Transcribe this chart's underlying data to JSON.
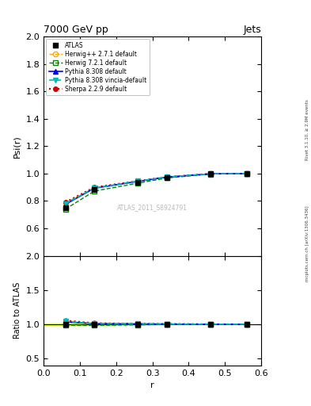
{
  "title_left": "7000 GeV pp",
  "title_right": "Jets",
  "right_label": "mcplots.cern.ch [arXiv:1306.3436]",
  "right_label2": "Rivet 3.1.10, ≥ 2.9M events",
  "watermark": "ATLAS_2011_S8924791",
  "xlabel": "r",
  "ylabel_main": "Psi(r)",
  "ylabel_ratio": "Ratio to ATLAS",
  "x_data": [
    0.06,
    0.14,
    0.26,
    0.34,
    0.46,
    0.56
  ],
  "atlas_y": [
    0.749,
    0.885,
    0.938,
    0.971,
    0.997,
    1.0
  ],
  "atlas_yerr": [
    0.01,
    0.008,
    0.006,
    0.005,
    0.003,
    0.002
  ],
  "herwig271_y": [
    0.786,
    0.895,
    0.943,
    0.974,
    0.998,
    1.0
  ],
  "herwig721_y": [
    0.74,
    0.872,
    0.93,
    0.968,
    0.996,
    1.0
  ],
  "pythia8308_y": [
    0.775,
    0.893,
    0.943,
    0.974,
    0.998,
    1.0
  ],
  "pythia8308v_y": [
    0.78,
    0.895,
    0.945,
    0.975,
    0.998,
    1.0
  ],
  "sherpa229_y": [
    0.79,
    0.9,
    0.946,
    0.975,
    0.999,
    1.0
  ],
  "ylim_main": [
    0.4,
    2.0
  ],
  "ylim_ratio": [
    0.4,
    2.0
  ],
  "xlim": [
    0.0,
    0.6
  ],
  "yticks_main": [
    0.6,
    0.8,
    1.0,
    1.2,
    1.4,
    1.6,
    1.8,
    2.0
  ],
  "yticks_ratio": [
    0.5,
    1.0,
    1.5,
    2.0
  ],
  "xticks_main": [
    0.1,
    0.2,
    0.3,
    0.4,
    0.5
  ],
  "xticks_ratio": [
    0.0,
    0.1,
    0.2,
    0.3,
    0.4,
    0.5,
    0.6
  ],
  "atlas_color": "#000000",
  "herwig271_color": "#FFA500",
  "herwig721_color": "#008800",
  "pythia8308_color": "#0000FF",
  "pythia8308v_color": "#00BBBB",
  "sherpa229_color": "#CC0000",
  "bg_color": "#ffffff",
  "legend_labels": [
    "ATLAS",
    "Herwig++ 2.7.1 default",
    "Herwig 7.2.1 default",
    "Pythia 8.308 default",
    "Pythia 8.308 vincia-default",
    "Sherpa 2.2.9 default"
  ],
  "band_color": "#CCFF00",
  "band_alpha": 0.55
}
